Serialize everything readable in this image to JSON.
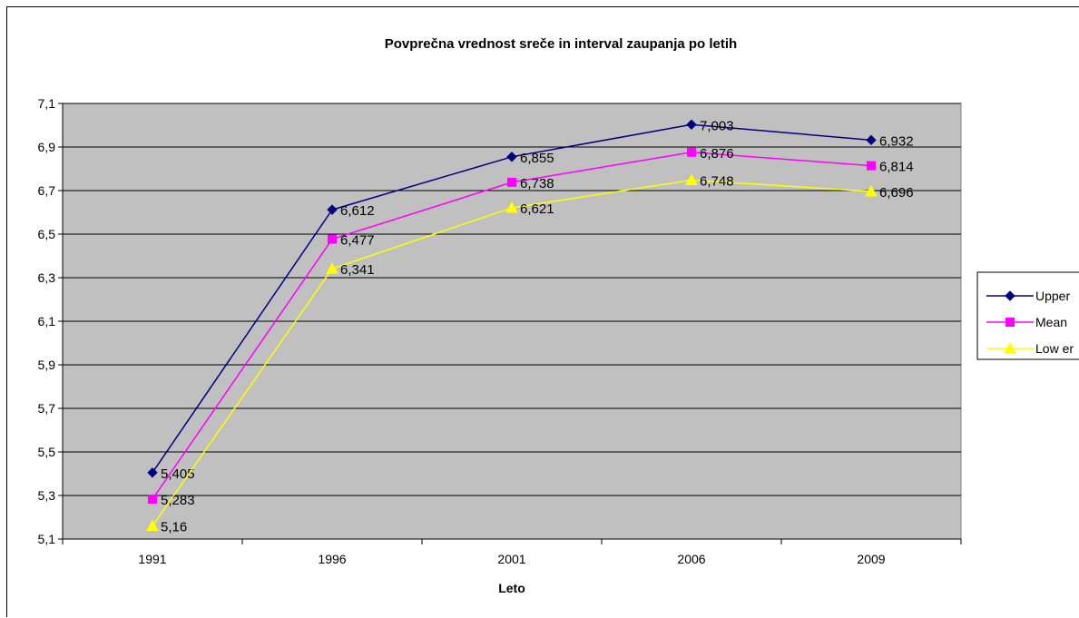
{
  "chart_data": {
    "type": "line",
    "title": "Povprečna vrednost sreče in interval zaupanja po letih",
    "xlabel": "Leto",
    "ylabel": "",
    "categories": [
      "1991",
      "1996",
      "2001",
      "2006",
      "2009"
    ],
    "ylim": [
      5.1,
      7.1
    ],
    "ytick_step": 0.2,
    "yticks": [
      "5,1",
      "5,3",
      "5,5",
      "5,7",
      "5,9",
      "6,1",
      "6,3",
      "6,5",
      "6,7",
      "6,9",
      "7,1"
    ],
    "grid": true,
    "legend": "right",
    "plot_background": "#c0c0c0",
    "series": [
      {
        "name": "Upper",
        "values": [
          5.405,
          6.612,
          6.855,
          7.003,
          6.932
        ],
        "labels": [
          "5,405",
          "6,612",
          "6,855",
          "7,003",
          "6,932"
        ],
        "color": "#000080",
        "marker": "diamond"
      },
      {
        "name": "Mean",
        "values": [
          5.283,
          6.477,
          6.738,
          6.876,
          6.814
        ],
        "labels": [
          "5,283",
          "6,477",
          "6,738",
          "6,876",
          "6,814"
        ],
        "color": "#ff00ff",
        "marker": "square"
      },
      {
        "name": "Low er",
        "values": [
          5.16,
          6.341,
          6.621,
          6.748,
          6.696
        ],
        "labels": [
          "5,16",
          "6,341",
          "6,621",
          "6,748",
          "6,696"
        ],
        "color": "#ffff00",
        "marker": "triangle"
      }
    ]
  }
}
